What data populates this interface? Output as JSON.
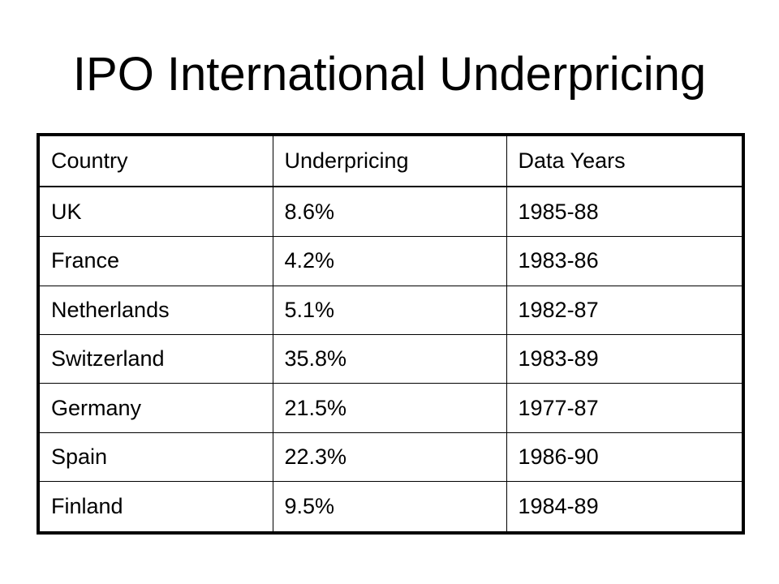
{
  "title": "IPO International Underpricing",
  "table": {
    "headers": [
      "Country",
      "Underpricing",
      "Data Years"
    ],
    "rows": [
      [
        "UK",
        "8.6%",
        "1985-88"
      ],
      [
        "France",
        "4.2%",
        "1983-86"
      ],
      [
        "Netherlands",
        "5.1%",
        "1982-87"
      ],
      [
        "Switzerland",
        "35.8%",
        "1983-89"
      ],
      [
        "Germany",
        "21.5%",
        "1977-87"
      ],
      [
        "Spain",
        "22.3%",
        "1986-90"
      ],
      [
        "Finland",
        "9.5%",
        "1984-89"
      ]
    ]
  }
}
